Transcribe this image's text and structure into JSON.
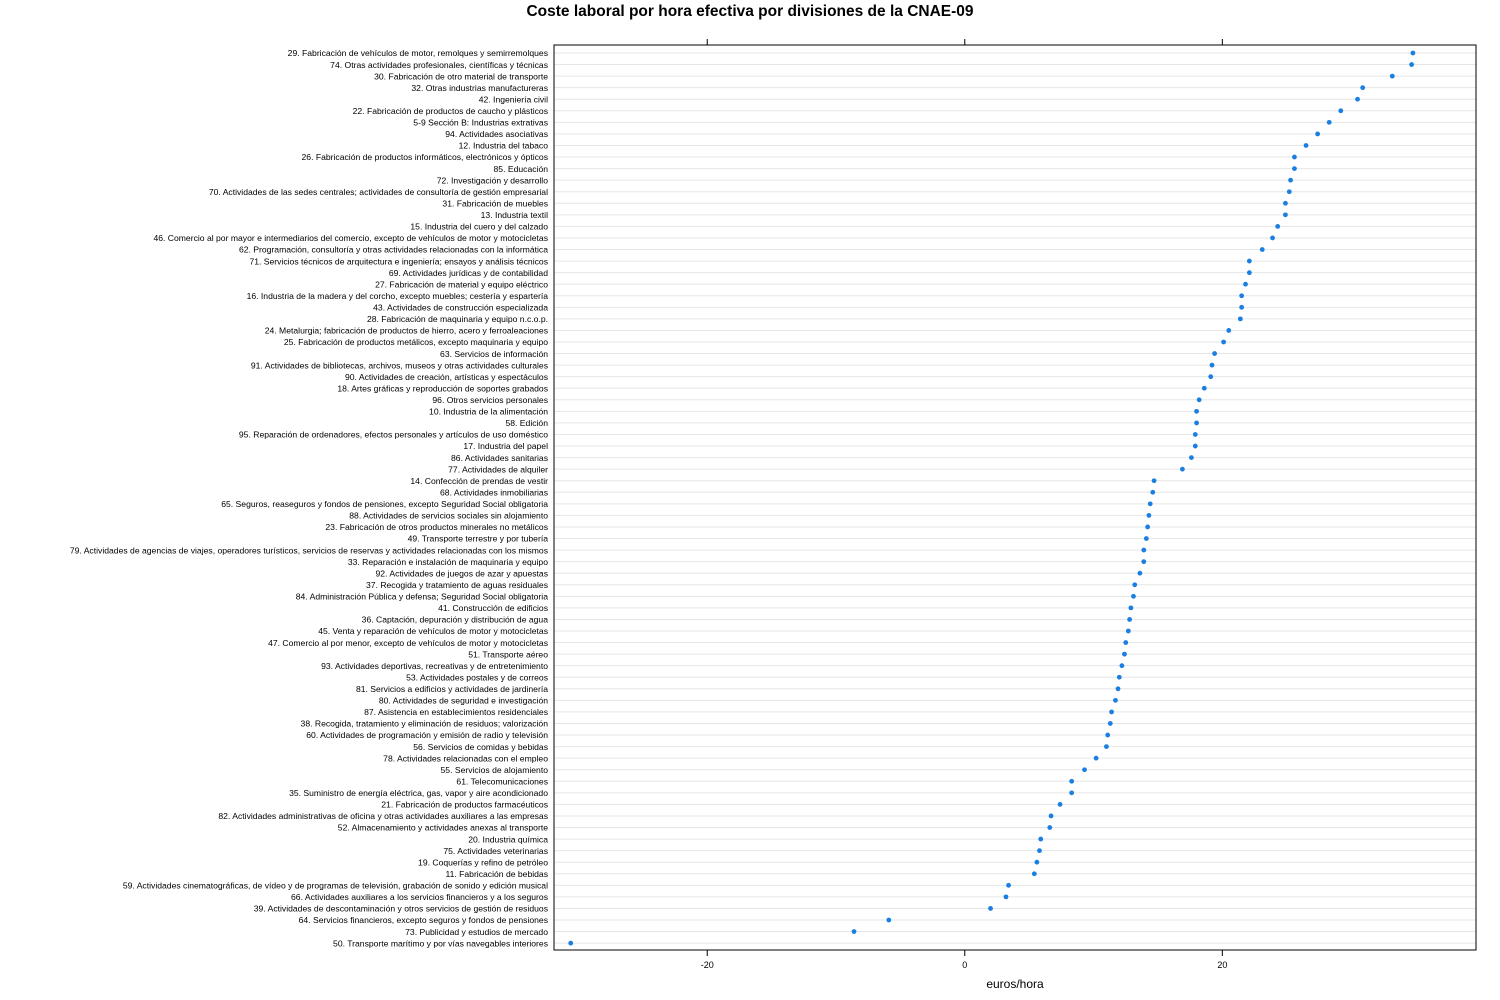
{
  "chart_data": {
    "type": "scatter",
    "title": "Coste laboral por hora efectiva por divisiones de la CNAE-09",
    "xlabel": "euros/hora",
    "ylabel": "",
    "xlim": [
      -31.9,
      39.7
    ],
    "x_ticks": [
      -20,
      0,
      20
    ],
    "grid": true,
    "point_color": "#1a7fe0",
    "categories": [
      "29. Fabricación de vehículos de motor, remolques y semirremolques",
      "74. Otras actividades profesionales, científicas y técnicas",
      "30. Fabricación de otro material de transporte",
      "32. Otras industrias manufactureras",
      "42. Ingeniería civil",
      "22. Fabricación de productos de caucho y plásticos",
      "5-9 Sección B: Industrias extrativas",
      "94. Actividades asociativas",
      "12. Industria del tabaco",
      "26. Fabricación de productos informáticos, electrónicos y ópticos",
      "85. Educación",
      "72. Investigación y desarrollo",
      "70. Actividades de las sedes centrales; actividades de consultoría de gestión empresarial",
      "31. Fabricación de muebles",
      "13. Industria textil",
      "15. Industria del cuero y del calzado",
      "46. Comercio al por mayor e intermediarios del comercio, excepto de vehículos de motor y motocicletas",
      "62. Programación, consultoría y otras actividades relacionadas con la informática",
      "71. Servicios técnicos de arquitectura e ingeniería; ensayos y análisis técnicos",
      "69. Actividades jurídicas y de contabilidad",
      "27. Fabricación de material y equipo eléctrico",
      "16. Industria de la madera y del corcho, excepto muebles; cestería y espartería",
      "43. Actividades de construcción especializada",
      "28. Fabricación de maquinaria y equipo n.c.o.p.",
      "24. Metalurgia; fabricación de productos de hierro, acero y ferroaleaciones",
      "25. Fabricación de productos metálicos, excepto maquinaria y equipo",
      "63. Servicios de información",
      "91. Actividades de bibliotecas, archivos, museos y otras actividades culturales",
      "90. Actividades de creación, artísticas y espectáculos",
      "18. Artes gráficas y reproducción de soportes grabados",
      "96. Otros servicios personales",
      "10. Industria de la alimentación",
      "58. Edición",
      "95. Reparación de ordenadores, efectos personales y artículos de uso doméstico",
      "17. Industria del papel",
      "86. Actividades sanitarias",
      "77. Actividades de alquiler",
      "14. Confección de prendas de vestir",
      "68. Actividades inmobiliarias",
      "65. Seguros, reaseguros y fondos de pensiones, excepto Seguridad Social obligatoria",
      "88. Actividades de servicios sociales sin alojamiento",
      "23. Fabricación de otros productos minerales no metálicos",
      "49. Transporte terrestre y por tubería",
      "79. Actividades de agencias de viajes, operadores turísticos, servicios de reservas y actividades relacionadas con los mismos",
      "33. Reparación e instalación de maquinaria y equipo",
      "92. Actividades de juegos de azar y apuestas",
      "37. Recogida y tratamiento de aguas residuales",
      "84. Administración Pública y defensa; Seguridad Social obligatoria",
      "41. Construcción de edificios",
      "36. Captación, depuración y distribución de agua",
      "45. Venta y reparación de vehículos de motor y motocicletas",
      "47. Comercio al por menor, excepto de vehículos de motor y motocicletas",
      "51. Transporte aéreo",
      "93. Actividades deportivas, recreativas y de entretenimiento",
      "53. Actividades postales y de correos",
      "81. Servicios a edificios y actividades de jardinería",
      "80. Actividades de seguridad e investigación",
      "87. Asistencia en establecimientos residenciales",
      "38. Recogida, tratamiento y eliminación de residuos; valorización",
      "60. Actividades de programación y emisión de radio y televisión",
      "56. Servicios de comidas y bebidas",
      "78. Actividades relacionadas con el empleo",
      "55. Servicios de alojamiento",
      "61. Telecomunicaciones",
      "35. Suministro de energía eléctrica, gas, vapor y aire acondicionado",
      "21. Fabricación de productos farmacéuticos",
      "82. Actividades administrativas de oficina y otras actividades auxiliares a las empresas",
      "52. Almacenamiento y actividades anexas al transporte",
      "20. Industria química",
      "75. Actividades veterinarias",
      "19. Coquerías y refino de petróleo",
      "11. Fabricación de bebidas",
      "59. Actividades cinematográficas, de vídeo y de programas de televisión, grabación de sonido y edición musical",
      "66. Actividades auxiliares a los servicios financieros y a los seguros",
      "39. Actividades de descontaminación y otros servicios de gestión de residuos",
      "64. Servicios financieros, excepto seguros y fondos de pensiones",
      "73. Publicidad y estudios de mercado",
      "50. Transporte marítimo y por vías navegables interiores"
    ],
    "values": [
      34.8,
      34.7,
      33.2,
      30.9,
      30.5,
      29.2,
      28.3,
      27.4,
      26.5,
      25.6,
      25.6,
      25.3,
      25.2,
      24.9,
      24.9,
      24.3,
      23.9,
      23.1,
      22.1,
      22.1,
      21.8,
      21.5,
      21.5,
      21.4,
      20.5,
      20.1,
      19.4,
      19.2,
      19.1,
      18.6,
      18.2,
      18.0,
      18.0,
      17.9,
      17.9,
      17.6,
      16.9,
      14.7,
      14.6,
      14.4,
      14.3,
      14.2,
      14.1,
      13.9,
      13.9,
      13.6,
      13.2,
      13.1,
      12.9,
      12.8,
      12.7,
      12.5,
      12.4,
      12.2,
      12.0,
      11.9,
      11.7,
      11.4,
      11.3,
      11.1,
      11.0,
      10.2,
      9.3,
      8.3,
      8.3,
      7.4,
      6.7,
      6.6,
      5.9,
      5.8,
      5.6,
      5.4,
      3.4,
      3.2,
      2.0,
      -5.9,
      -8.6,
      -30.6
    ]
  }
}
